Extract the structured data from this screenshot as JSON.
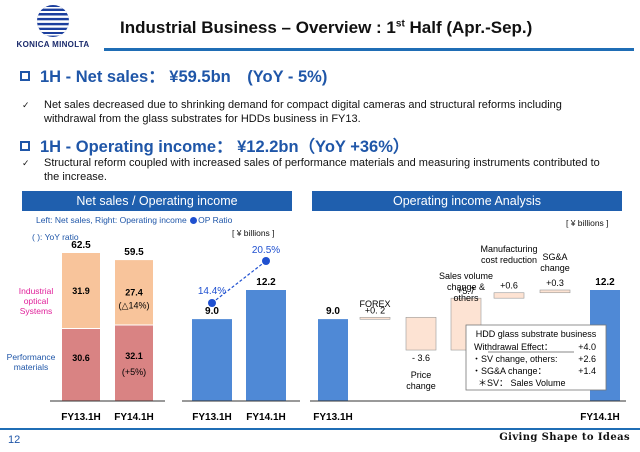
{
  "header": {
    "logo_text": "KONICA MINOLTA",
    "title_pre": "Industrial Business – Overview : 1",
    "title_sup": "st",
    "title_post": " Half (Apr.-Sep.)"
  },
  "highlights": [
    {
      "heading": "1H - Net sales：  ¥59.5bn　(YoY - 5%)",
      "text": "Net sales decreased due to shrinking demand for compact digital cameras and structural reforms including withdrawal from the glass substrates for HDDs business in FY13."
    },
    {
      "heading": "1H - Operating income：  ¥12.2bn（YoY +36%）",
      "text": "Structural reform coupled with increased sales of performance materials and measuring instruments contributed to the increase."
    }
  ],
  "bullet_marker": "✓",
  "panels": {
    "left_title": "Net sales / Operating income",
    "right_title": "Operating income Analysis"
  },
  "legend": {
    "line1_pre": "Left: Net sales,  Right: Operating income ",
    "line1_post": "OP Ratio",
    "line2": "( ): YoY ratio"
  },
  "units": {
    "oi": "[ ¥ billions ]",
    "analysis": "[ ¥ billions ]"
  },
  "segment_labels": {
    "industrial": "Industrial optical Systems",
    "performance": "Performance materials"
  },
  "chart_data": [
    {
      "type": "bar",
      "categories": [
        "FY13.1H",
        "FY14.1H"
      ],
      "series": [
        {
          "name": "Performance materials",
          "values": [
            30.6,
            32.1
          ],
          "labels": [
            "30.6",
            "32.1"
          ],
          "notes": [
            "",
            "(+5%)"
          ]
        },
        {
          "name": "Industrial optical Systems",
          "values": [
            31.9,
            27.4
          ],
          "labels": [
            "31.9",
            "27.4"
          ],
          "notes": [
            "",
            "(△14%)"
          ]
        }
      ],
      "totals": [
        62.5,
        59.5
      ],
      "total_labels": [
        "62.5",
        "59.5"
      ],
      "colors": {
        "Performance materials": "#d98383",
        "Industrial optical Systems": "#f8c49b"
      },
      "stacked": true
    },
    {
      "type": "bar",
      "categories": [
        "FY13.1H",
        "FY14.1H"
      ],
      "values": [
        9.0,
        12.2
      ],
      "value_labels": [
        "9.0",
        "12.2"
      ],
      "op_ratio": [
        14.4,
        20.5
      ],
      "op_ratio_labels": [
        "14.4%",
        "20.5%"
      ],
      "colors": {
        "bar": "#4f89d6",
        "ratio": "#1f50d0"
      }
    },
    {
      "type": "bar",
      "subtype": "waterfall",
      "categories": [
        "FY13.1H",
        "FOREX",
        "Price change",
        "Sales volume change & others",
        "Manufacturing cost reduction",
        "SG&A change",
        "FY14.1H"
      ],
      "values": [
        9.0,
        0.2,
        -3.6,
        5.7,
        0.6,
        0.3,
        12.2
      ],
      "value_labels": [
        "9.0",
        "+0. 2",
        "- 3.6",
        "+5.7",
        "+0.6",
        "+0.3",
        "12.2"
      ],
      "step_labels": [
        "",
        "FOREX",
        "Price change",
        "Sales volume change & others",
        "Manufacturing cost reduction",
        "SG&A change",
        ""
      ],
      "axis_labels": [
        "FY13.1H",
        "FY14.1H"
      ],
      "note": {
        "title": "HDD glass substrate business",
        "rows": [
          {
            "label": "Withdrawal Effect：",
            "value": "+4.0"
          },
          {
            "label": "・SV change, others:",
            "value": "+2.6"
          },
          {
            "label": "・SG&A change：",
            "value": "+1.4"
          }
        ],
        "footnote": "＊SV：  Sales Volume"
      },
      "colors": {
        "total": "#4f89d6",
        "step": "#fde3d3"
      }
    }
  ],
  "footer": {
    "page": "12",
    "tagline": "Giving Shape to Ideas"
  }
}
